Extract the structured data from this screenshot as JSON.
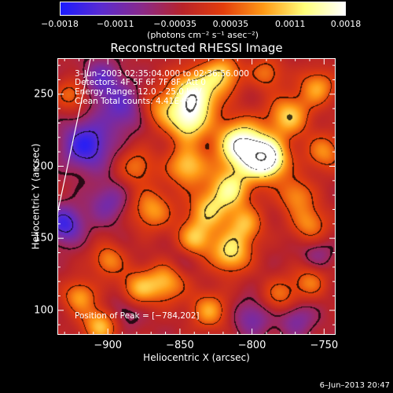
{
  "chart_data": {
    "type": "heatmap",
    "title": "Reconstructed RHESSI Image",
    "xlabel": "Heliocentric X (arcsec)",
    "ylabel": "Heliocentric Y (arcsec)",
    "xlim": [
      -935,
      -742
    ],
    "ylim": [
      83,
      275
    ],
    "x_ticks": [
      "−900",
      "−850",
      "−800",
      "−750"
    ],
    "x_tick_values": [
      -900,
      -850,
      -800,
      -750
    ],
    "y_ticks": [
      "100",
      "150",
      "200",
      "250"
    ],
    "y_tick_values": [
      100,
      150,
      200,
      250
    ],
    "colorbar": {
      "ticks": [
        "−0.0018",
        "−0.0011",
        "−0.00035",
        "0.00035",
        "0.0011",
        "0.0018"
      ],
      "tick_values": [
        -0.0018,
        -0.0011,
        -0.00035,
        0.00035,
        0.0011,
        0.0018
      ],
      "range": [
        -0.0018,
        0.0018
      ],
      "unit_label": "(photons cm⁻² s⁻¹ asec⁻²)",
      "colors": [
        "#1b1bff",
        "#5a2bd0",
        "#8a2a8a",
        "#b8232a",
        "#e33d0c",
        "#ff9a16",
        "#ffff7a",
        "#ffffff"
      ]
    },
    "annotations": {
      "time_range": "3–Jun–2003 02:35:04.000 to 02:36:56.000",
      "detectors": "Detectors: 4F 5F 6F 7F 8F, Att 0",
      "energy": "Energy Range: 12.0 – 25.0 keV",
      "clean": "Clean     Total counts: 4.41E+03",
      "peak": "Position of Peak = [−784,202]"
    },
    "peak": {
      "x": -784,
      "y": 202
    },
    "limb_line": [
      [
        -935,
        167
      ],
      [
        -912,
        275
      ]
    ],
    "sources": [
      {
        "x": -790,
        "y": 205,
        "amp": 1.0,
        "s": 10
      },
      {
        "x": -808,
        "y": 215,
        "amp": 0.9,
        "s": 12
      },
      {
        "x": -840,
        "y": 250,
        "amp": 0.8,
        "s": 12
      },
      {
        "x": -845,
        "y": 230,
        "amp": 0.6,
        "s": 10
      },
      {
        "x": -815,
        "y": 185,
        "amp": 0.6,
        "s": 10
      },
      {
        "x": -845,
        "y": 200,
        "amp": 0.55,
        "s": 10
      },
      {
        "x": -830,
        "y": 170,
        "amp": 0.5,
        "s": 10
      },
      {
        "x": -805,
        "y": 160,
        "amp": 0.45,
        "s": 9
      },
      {
        "x": -815,
        "y": 140,
        "amp": 0.6,
        "s": 10
      },
      {
        "x": -840,
        "y": 150,
        "amp": 0.5,
        "s": 9
      },
      {
        "x": -775,
        "y": 235,
        "amp": 0.55,
        "s": 10
      },
      {
        "x": -755,
        "y": 255,
        "amp": 0.45,
        "s": 9
      },
      {
        "x": -770,
        "y": 180,
        "amp": 0.4,
        "s": 9
      },
      {
        "x": -750,
        "y": 210,
        "amp": 0.4,
        "s": 9
      },
      {
        "x": -760,
        "y": 160,
        "amp": 0.4,
        "s": 9
      },
      {
        "x": -870,
        "y": 170,
        "amp": 0.45,
        "s": 10
      },
      {
        "x": -880,
        "y": 200,
        "amp": 0.35,
        "s": 9
      },
      {
        "x": -865,
        "y": 240,
        "amp": 0.35,
        "s": 9
      },
      {
        "x": -860,
        "y": 120,
        "amp": 0.5,
        "s": 10
      },
      {
        "x": -880,
        "y": 115,
        "amp": 0.45,
        "s": 9
      },
      {
        "x": -905,
        "y": 90,
        "amp": 0.55,
        "s": 9
      },
      {
        "x": -920,
        "y": 110,
        "amp": 0.45,
        "s": 8
      },
      {
        "x": -900,
        "y": 135,
        "amp": 0.4,
        "s": 8
      },
      {
        "x": -830,
        "y": 100,
        "amp": 0.45,
        "s": 9
      },
      {
        "x": -780,
        "y": 110,
        "amp": 0.35,
        "s": 9
      },
      {
        "x": -760,
        "y": 120,
        "amp": 0.35,
        "s": 8
      },
      {
        "x": -820,
        "y": 265,
        "amp": 0.5,
        "s": 9
      },
      {
        "x": -790,
        "y": 265,
        "amp": 0.35,
        "s": 8
      },
      {
        "x": -925,
        "y": 250,
        "amp": 0.35,
        "s": 8
      },
      {
        "x": -915,
        "y": 215,
        "amp": -0.55,
        "s": 12
      },
      {
        "x": -890,
        "y": 240,
        "amp": -0.35,
        "s": 11
      },
      {
        "x": -900,
        "y": 175,
        "amp": -0.3,
        "s": 10
      },
      {
        "x": -930,
        "y": 160,
        "amp": -0.5,
        "s": 9
      },
      {
        "x": -905,
        "y": 260,
        "amp": -0.35,
        "s": 10
      },
      {
        "x": -890,
        "y": 100,
        "amp": -0.25,
        "s": 9
      },
      {
        "x": -800,
        "y": 95,
        "amp": -0.3,
        "s": 9
      },
      {
        "x": -770,
        "y": 95,
        "amp": -0.3,
        "s": 9
      },
      {
        "x": -755,
        "y": 140,
        "amp": -0.2,
        "s": 8
      },
      {
        "x": -850,
        "y": 135,
        "amp": -0.15,
        "s": 8
      }
    ]
  },
  "footer": {
    "date": "6–Jun–2013 20:47"
  }
}
